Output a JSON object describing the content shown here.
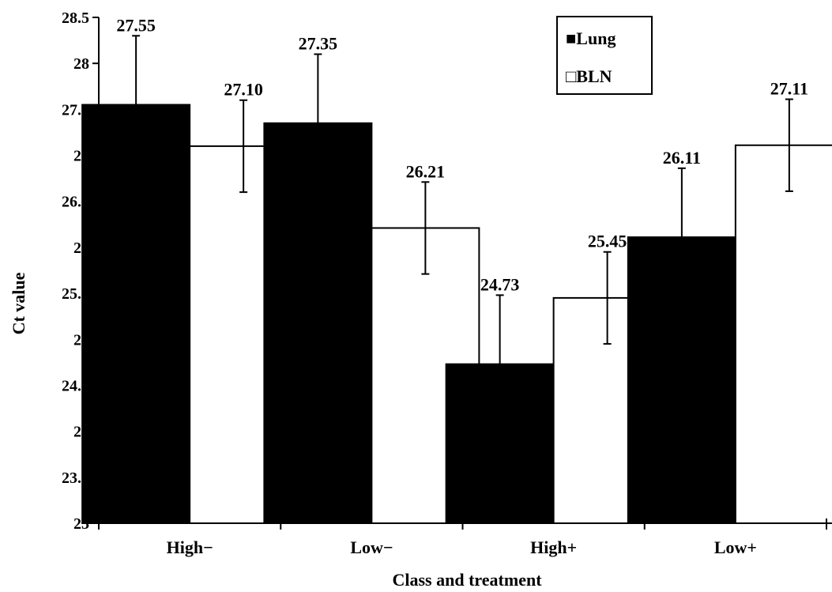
{
  "chart_data": {
    "type": "bar",
    "title": "",
    "xlabel": "Class and treatment",
    "ylabel": "Ct value",
    "ylim": [
      23,
      28.5
    ],
    "yticks": [
      23,
      23.5,
      24,
      24.5,
      25,
      25.5,
      26,
      26.5,
      27,
      27.5,
      28,
      28.5
    ],
    "ytick_labels": [
      "23",
      "23.5",
      "24",
      "24.5",
      "25",
      "25.5",
      "26",
      "26.5",
      "27",
      "27.5",
      "28",
      "28.5"
    ],
    "categories": [
      "High−",
      "Low−",
      "High+",
      "Low+"
    ],
    "series": [
      {
        "name": "Lung",
        "color": "#000000",
        "values": [
          27.55,
          27.35,
          24.73,
          26.11
        ],
        "value_labels": [
          "27.55",
          "27.35",
          "24.73",
          "26.11"
        ],
        "error": [
          0.75,
          0.75,
          0.75,
          0.75
        ]
      },
      {
        "name": "BLN",
        "color": "#ffffff",
        "values": [
          27.1,
          26.21,
          25.45,
          27.11
        ],
        "value_labels": [
          "27.10",
          "26.21",
          "25.45",
          "27.11"
        ],
        "error": [
          0.5,
          0.5,
          0.5,
          0.5
        ]
      }
    ],
    "legend": {
      "position": "top-right-inside",
      "entries": [
        {
          "marker": "■",
          "label": "Lung"
        },
        {
          "marker": "□",
          "label": "BLN"
        }
      ]
    },
    "grid": false
  }
}
